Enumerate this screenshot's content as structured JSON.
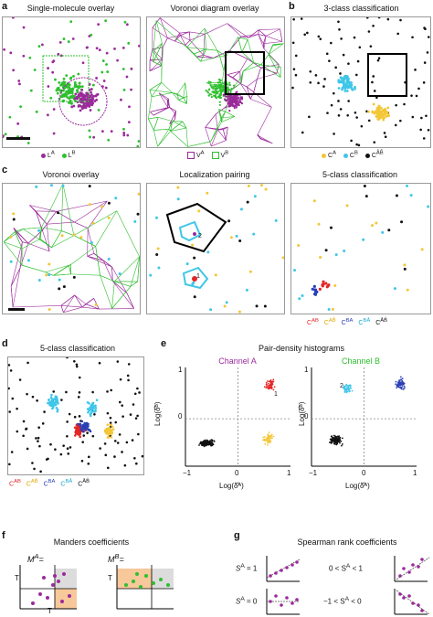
{
  "panels": {
    "a": {
      "letter": "a",
      "title1": "Single-molecule overlay",
      "title2": "Voronoi diagram overlay",
      "legend1": [
        "L",
        "L"
      ],
      "legend1_sup": [
        "A",
        "B"
      ],
      "legend2": [
        "V",
        "V"
      ],
      "legend2_sup": [
        "A",
        "B"
      ]
    },
    "b": {
      "letter": "b",
      "title": "3-class classification",
      "legend": [
        "C",
        "C",
        "C"
      ],
      "legend_sup": [
        "A",
        "B",
        "ÂB̂"
      ]
    },
    "c": {
      "letter": "c",
      "title1": "Voronoi overlay",
      "title2": "Localization pairing",
      "title3": "5-class classification",
      "legend": [
        "C",
        "C",
        "C",
        "C",
        "C"
      ],
      "legend_sup": [
        "AB",
        "AB̂",
        "BA",
        "BÂ",
        "ÂB̂"
      ],
      "marker1": "1",
      "marker2": "2"
    },
    "d": {
      "letter": "d",
      "title": "5-class classification",
      "legend": [
        "C",
        "C",
        "C",
        "C",
        "C"
      ],
      "legend_sup": [
        "AB",
        "AB̂",
        "BA",
        "BÂ",
        "ÂB̂"
      ]
    },
    "e": {
      "letter": "e",
      "title": "Pair-density histograms",
      "channelA": "Channel A",
      "channelB": "Channel B",
      "ylabel": "Log(δ̂ᴮ)",
      "xlabel": "Log(δ̂ᴬ)",
      "ticks": [
        "−1",
        "0",
        "1"
      ],
      "yticks": [
        "1",
        "0"
      ],
      "marker1": "1",
      "marker2": "2"
    },
    "f": {
      "letter": "f",
      "title": "Manders coefficients",
      "eqA": "M",
      "eqA_sup": "A",
      "eqB": "M",
      "eqB_sup": "B",
      "eq_rhs": "=",
      "t_label": "T"
    },
    "g": {
      "letter": "g",
      "title": "Spearman rank coefficients",
      "c1": "S",
      "c1_sup": "A",
      "c1_rhs": " = 1",
      "c2": "0 < S",
      "c2_sup": "A",
      "c2_rhs": " < 1",
      "c3": "S",
      "c3_sup": "A",
      "c3_rhs": " = 0",
      "c4": "−1 < S",
      "c4_sup": "A",
      "c4_rhs": " < 0"
    }
  },
  "colors": {
    "purple": "#9b2a9b",
    "green": "#2fbf2f",
    "cyan": "#3ec6e8",
    "yellow": "#f3c637",
    "red": "#e32626",
    "blue": "#2a3fb5",
    "black": "#111111",
    "orange": "#f7c89a",
    "gray": "#dcdcdc"
  }
}
